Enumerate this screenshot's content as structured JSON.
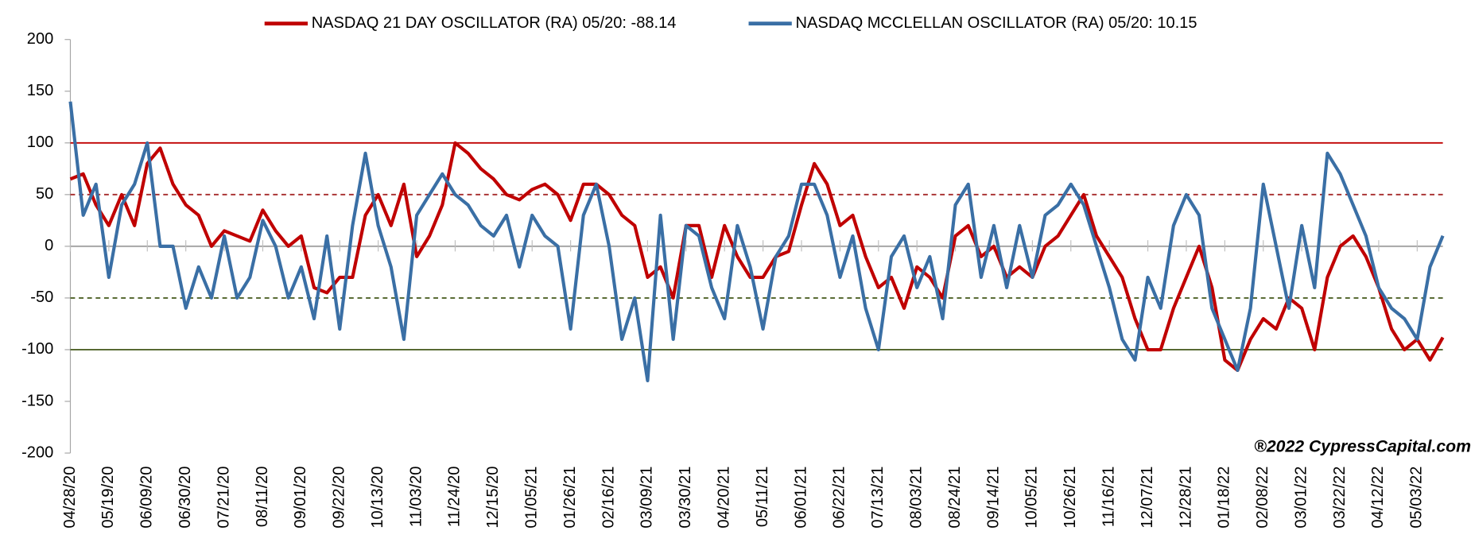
{
  "chart_data": {
    "type": "line",
    "categories": [
      "04/28/20",
      null,
      null,
      "05/19/20",
      null,
      null,
      "06/09/20",
      null,
      null,
      "06/30/20",
      null,
      null,
      "07/21/20",
      null,
      null,
      "08/11/20",
      null,
      null,
      "09/01/20",
      null,
      null,
      "09/22/20",
      null,
      null,
      "10/13/20",
      null,
      null,
      "11/03/20",
      null,
      null,
      "11/24/20",
      null,
      null,
      "12/15/20",
      null,
      null,
      "01/05/21",
      null,
      null,
      "01/26/21",
      null,
      null,
      "02/16/21",
      null,
      null,
      "03/09/21",
      null,
      null,
      "03/30/21",
      null,
      null,
      "04/20/21",
      null,
      null,
      "05/11/21",
      null,
      null,
      "06/01/21",
      null,
      null,
      "06/22/21",
      null,
      null,
      "07/13/21",
      null,
      null,
      "08/03/21",
      null,
      null,
      "08/24/21",
      null,
      null,
      "09/14/21",
      null,
      null,
      "10/05/21",
      null,
      null,
      "10/26/21",
      null,
      null,
      "11/16/21",
      null,
      null,
      "12/07/21",
      null,
      null,
      "12/28/21",
      null,
      null,
      "01/18/22",
      null,
      null,
      "02/08/22",
      null,
      null,
      "03/01/22",
      null,
      null,
      "03/22/22",
      null,
      null,
      "04/12/22",
      null,
      null,
      "05/03/22",
      null,
      null
    ],
    "series": [
      {
        "name": "NASDAQ 21 DAY OSCILLATOR (RA) 05/20: -88.14",
        "color": "#c00000",
        "values": [
          65,
          70,
          40,
          20,
          50,
          20,
          80,
          95,
          60,
          40,
          30,
          0,
          15,
          10,
          5,
          35,
          15,
          0,
          10,
          -40,
          -45,
          -30,
          -30,
          30,
          50,
          20,
          60,
          -10,
          10,
          40,
          100,
          90,
          75,
          65,
          50,
          45,
          55,
          60,
          50,
          25,
          60,
          60,
          50,
          30,
          20,
          -30,
          -20,
          -50,
          20,
          20,
          -30,
          20,
          -10,
          -30,
          -30,
          -10,
          -5,
          40,
          80,
          60,
          20,
          30,
          -10,
          -40,
          -30,
          -60,
          -20,
          -30,
          -50,
          10,
          20,
          -10,
          0,
          -30,
          -20,
          -30,
          0,
          10,
          30,
          50,
          10,
          -10,
          -30,
          -70,
          -100,
          -100,
          -60,
          -30,
          0,
          -40,
          -110,
          -120,
          -90,
          -70,
          -80,
          -50,
          -60,
          -100,
          -30,
          0,
          10,
          -10,
          -40,
          -80,
          -100,
          -90,
          -110,
          -88.14
        ]
      },
      {
        "name": "NASDAQ MCCLELLAN OSCILLATOR (RA) 05/20: 10.15",
        "color": "#3a6fa5",
        "values": [
          140,
          30,
          60,
          -30,
          40,
          60,
          100,
          0,
          0,
          -60,
          -20,
          -50,
          10,
          -50,
          -30,
          25,
          0,
          -50,
          -20,
          -70,
          10,
          -80,
          20,
          90,
          20,
          -20,
          -90,
          30,
          50,
          70,
          50,
          40,
          20,
          10,
          30,
          -20,
          30,
          10,
          0,
          -80,
          30,
          60,
          0,
          -90,
          -50,
          -130,
          30,
          -90,
          20,
          10,
          -40,
          -70,
          20,
          -20,
          -80,
          -10,
          10,
          60,
          60,
          30,
          -30,
          10,
          -60,
          -100,
          -10,
          10,
          -40,
          -10,
          -70,
          40,
          60,
          -30,
          20,
          -40,
          20,
          -30,
          30,
          40,
          60,
          40,
          0,
          -40,
          -90,
          -110,
          -30,
          -60,
          20,
          50,
          30,
          -60,
          -90,
          -120,
          -60,
          60,
          0,
          -60,
          20,
          -40,
          90,
          70,
          40,
          10,
          -40,
          -60,
          -70,
          -90,
          -20,
          10.15
        ]
      }
    ],
    "ylim": [
      -200,
      200
    ],
    "yticks": [
      -200,
      -150,
      -100,
      -50,
      0,
      50,
      100,
      150,
      200
    ],
    "reference_lines": [
      {
        "value": 100,
        "color": "#c00000",
        "dash": false
      },
      {
        "value": 50,
        "color": "#a52a2a",
        "dash": true
      },
      {
        "value": 0,
        "color": "#a6a6a6",
        "dash": false
      },
      {
        "value": -50,
        "color": "#4f6228",
        "dash": true
      },
      {
        "value": -100,
        "color": "#4f6228",
        "dash": false
      }
    ],
    "annotation": "®2022 CypressCapital.com"
  }
}
